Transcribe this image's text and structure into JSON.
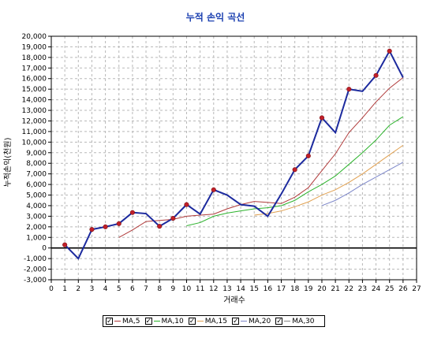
{
  "chart_data": {
    "type": "line",
    "title": "누적 손익 곡선",
    "xlabel": "거래수",
    "ylabel": "누적손익(천원)",
    "xlim": [
      0,
      27
    ],
    "ylim": [
      -3000,
      20000
    ],
    "x_ticks": [
      0,
      1,
      2,
      3,
      4,
      5,
      6,
      7,
      8,
      9,
      10,
      11,
      12,
      13,
      14,
      15,
      16,
      17,
      18,
      19,
      20,
      21,
      22,
      23,
      24,
      25,
      26,
      27
    ],
    "y_ticks": [
      -3000,
      -2000,
      -1000,
      0,
      1000,
      2000,
      3000,
      4000,
      5000,
      6000,
      7000,
      8000,
      9000,
      10000,
      11000,
      12000,
      13000,
      14000,
      15000,
      16000,
      17000,
      18000,
      19000,
      20000
    ],
    "y_tick_labels": [
      "-3,000",
      "-2,000",
      "-1,000",
      "0",
      "1,000",
      "2,000",
      "3,000",
      "4,000",
      "5,000",
      "6,000",
      "7,000",
      "8,000",
      "9,000",
      "10,000",
      "11,000",
      "12,000",
      "13,000",
      "14,000",
      "15,000",
      "16,000",
      "17,000",
      "18,000",
      "19,000",
      "20,000"
    ],
    "grid": true,
    "legend_position": "bottom",
    "series": [
      {
        "key": "equity",
        "color": "#1c2a9e",
        "markers": true,
        "x": [
          1,
          2,
          3,
          4,
          5,
          6,
          7,
          8,
          9,
          10,
          11,
          12,
          13,
          14,
          15,
          16,
          17,
          18,
          19,
          20,
          21,
          22,
          23,
          24,
          25,
          26
        ],
        "y": [
          300,
          -1000,
          1750,
          2000,
          2300,
          3350,
          3250,
          2050,
          2800,
          4100,
          3200,
          5500,
          5000,
          4100,
          3950,
          3000,
          5100,
          7400,
          8700,
          12300,
          10900,
          15000,
          14800,
          16300,
          18600,
          16100
        ]
      },
      {
        "key": "MA,5",
        "color": "#b03a3a",
        "markers": false,
        "x": [
          5,
          6,
          7,
          8,
          9,
          10,
          11,
          12,
          13,
          14,
          15,
          16,
          17,
          18,
          19,
          20,
          21,
          22,
          23,
          24,
          25,
          26
        ],
        "y": [
          1000,
          1700,
          2500,
          2600,
          2700,
          3000,
          3100,
          3200,
          3700,
          4100,
          4400,
          4300,
          4200,
          4800,
          5700,
          7300,
          8900,
          10900,
          12300,
          13800,
          15100,
          16100
        ]
      },
      {
        "key": "MA,10",
        "color": "#2cb32c",
        "markers": false,
        "x": [
          10,
          11,
          12,
          13,
          14,
          15,
          16,
          17,
          18,
          19,
          20,
          21,
          22,
          23,
          24,
          25,
          26
        ],
        "y": [
          2100,
          2400,
          3000,
          3300,
          3500,
          3700,
          3800,
          4000,
          4500,
          5300,
          6000,
          6800,
          7900,
          9000,
          10200,
          11600,
          12400
        ]
      },
      {
        "key": "MA,15",
        "color": "#e0a050",
        "markers": false,
        "x": [
          15,
          16,
          17,
          18,
          19,
          20,
          21,
          22,
          23,
          24,
          25,
          26
        ],
        "y": [
          3100,
          3250,
          3500,
          3900,
          4350,
          5000,
          5500,
          6200,
          7000,
          7900,
          8800,
          9700
        ]
      },
      {
        "key": "MA,20",
        "color": "#7c86c8",
        "markers": false,
        "x": [
          20,
          21,
          22,
          23,
          24,
          25,
          26
        ],
        "y": [
          4000,
          4500,
          5200,
          6000,
          6700,
          7400,
          8100
        ]
      }
    ]
  },
  "legend": [
    {
      "label": "MA,5",
      "checked": true,
      "color": "#b03a3a"
    },
    {
      "label": "MA,10",
      "checked": true,
      "color": "#2cb32c"
    },
    {
      "label": "MA,15",
      "checked": true,
      "color": "#e0a050"
    },
    {
      "label": "MA,20",
      "checked": true,
      "color": "#7c86c8"
    },
    {
      "label": "MA,30",
      "checked": true,
      "color": "#888888"
    }
  ]
}
